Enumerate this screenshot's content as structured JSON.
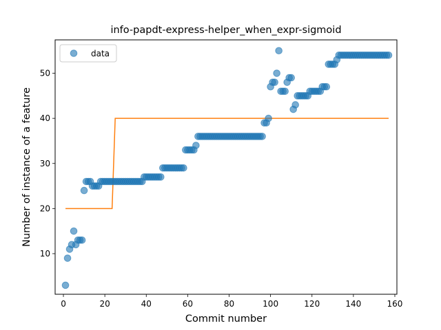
{
  "chart_data": {
    "type": "scatter",
    "title": "info-papdt-express-helper_when_expr-sigmoid",
    "xlabel": "Commit number",
    "ylabel": "Number of instance of a feature",
    "xlim": [
      -4,
      161
    ],
    "ylim": [
      1.0,
      57.4
    ],
    "xticks": [
      0,
      20,
      40,
      60,
      80,
      100,
      120,
      140,
      160
    ],
    "yticks": [
      10,
      20,
      30,
      40,
      50
    ],
    "legend": {
      "label": "data",
      "position": "top-left"
    },
    "colors": {
      "data": "#1f77b4",
      "fit": "#ff7f0e"
    },
    "series": [
      {
        "name": "data",
        "kind": "scatter",
        "x": [
          1,
          2,
          3,
          4,
          5,
          6,
          7,
          8,
          9,
          10,
          11,
          12,
          13,
          14,
          15,
          16,
          17,
          18,
          19,
          20,
          21,
          22,
          23,
          24,
          25,
          26,
          27,
          28,
          29,
          30,
          31,
          32,
          33,
          34,
          35,
          36,
          37,
          38,
          39,
          40,
          41,
          42,
          43,
          44,
          45,
          46,
          47,
          48,
          49,
          50,
          51,
          52,
          53,
          54,
          55,
          56,
          57,
          58,
          59,
          60,
          61,
          62,
          63,
          64,
          65,
          66,
          67,
          68,
          69,
          70,
          71,
          72,
          73,
          74,
          75,
          76,
          77,
          78,
          79,
          80,
          81,
          82,
          83,
          84,
          85,
          86,
          87,
          88,
          89,
          90,
          91,
          92,
          93,
          94,
          95,
          96,
          97,
          98,
          99,
          100,
          101,
          102,
          103,
          104,
          105,
          106,
          107,
          108,
          109,
          110,
          111,
          112,
          113,
          114,
          115,
          116,
          117,
          118,
          119,
          120,
          121,
          122,
          123,
          124,
          125,
          126,
          127,
          128,
          129,
          130,
          131,
          132,
          133,
          134,
          135,
          136,
          137,
          138,
          139,
          140,
          141,
          142,
          143,
          144,
          145,
          146,
          147,
          148,
          149,
          150,
          151,
          152,
          153,
          154,
          155,
          156,
          157
        ],
        "y": [
          3,
          9,
          11,
          12,
          15,
          12,
          13,
          13,
          13,
          24,
          26,
          26,
          26,
          25,
          25,
          25,
          25,
          26,
          26,
          26,
          26,
          26,
          26,
          26,
          26,
          26,
          26,
          26,
          26,
          26,
          26,
          26,
          26,
          26,
          26,
          26,
          26,
          26,
          27,
          27,
          27,
          27,
          27,
          27,
          27,
          27,
          27,
          29,
          29,
          29,
          29,
          29,
          29,
          29,
          29,
          29,
          29,
          29,
          33,
          33,
          33,
          33,
          33,
          34,
          36,
          36,
          36,
          36,
          36,
          36,
          36,
          36,
          36,
          36,
          36,
          36,
          36,
          36,
          36,
          36,
          36,
          36,
          36,
          36,
          36,
          36,
          36,
          36,
          36,
          36,
          36,
          36,
          36,
          36,
          36,
          36,
          39,
          39,
          40,
          47,
          48,
          48,
          50,
          55,
          46,
          46,
          46,
          48,
          49,
          49,
          42,
          43,
          45,
          45,
          45,
          45,
          45,
          45,
          46,
          46,
          46,
          46,
          46,
          46,
          47,
          47,
          47,
          52,
          52,
          52,
          52,
          53,
          54,
          54,
          54,
          54,
          54,
          54,
          54,
          54,
          54,
          54,
          54,
          54,
          54,
          54,
          54,
          54,
          54,
          54,
          54,
          54,
          54,
          54,
          54,
          54,
          54
        ]
      },
      {
        "name": "fit",
        "kind": "line",
        "x": [
          1,
          23.5,
          25,
          157
        ],
        "y": [
          20,
          20,
          40,
          40
        ]
      }
    ]
  }
}
